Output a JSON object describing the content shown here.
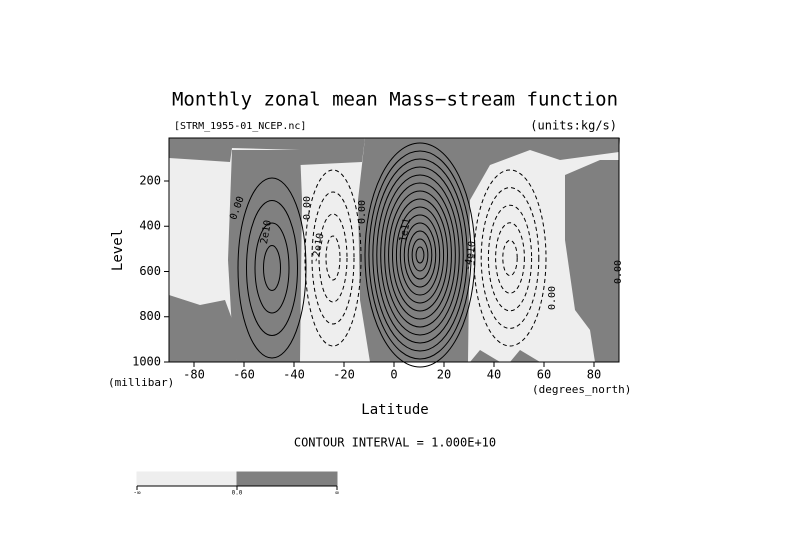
{
  "chart_data": {
    "type": "contour",
    "title": "Monthly zonal mean Mass−stream function",
    "file_label": "[STRM_1955-01_NCEP.nc]",
    "units_label": "(units:kg/s)",
    "x_label": "Latitude",
    "y_label": "Level",
    "x_unit_label": "(degrees_north)",
    "y_unit_label": "(millibar)",
    "xlim": [
      -90,
      90
    ],
    "ylim": [
      1000,
      10
    ],
    "xticks": [
      -80,
      -60,
      -40,
      -20,
      0,
      20,
      40,
      60,
      80
    ],
    "yticks": [
      200,
      400,
      600,
      800,
      1000
    ],
    "contour_interval_label": "CONTOUR INTERVAL = 1.000E+10",
    "contour_labels": [
      "0.00",
      "2e10",
      "0.00",
      "-2e10",
      "0.00",
      "1e11",
      "-4e10",
      "0.00",
      "0.00"
    ],
    "colorbar": {
      "labels": [
        "-∞",
        "0.0",
        "∞"
      ],
      "colors": [
        "#eeeeee",
        "#808080"
      ]
    }
  }
}
